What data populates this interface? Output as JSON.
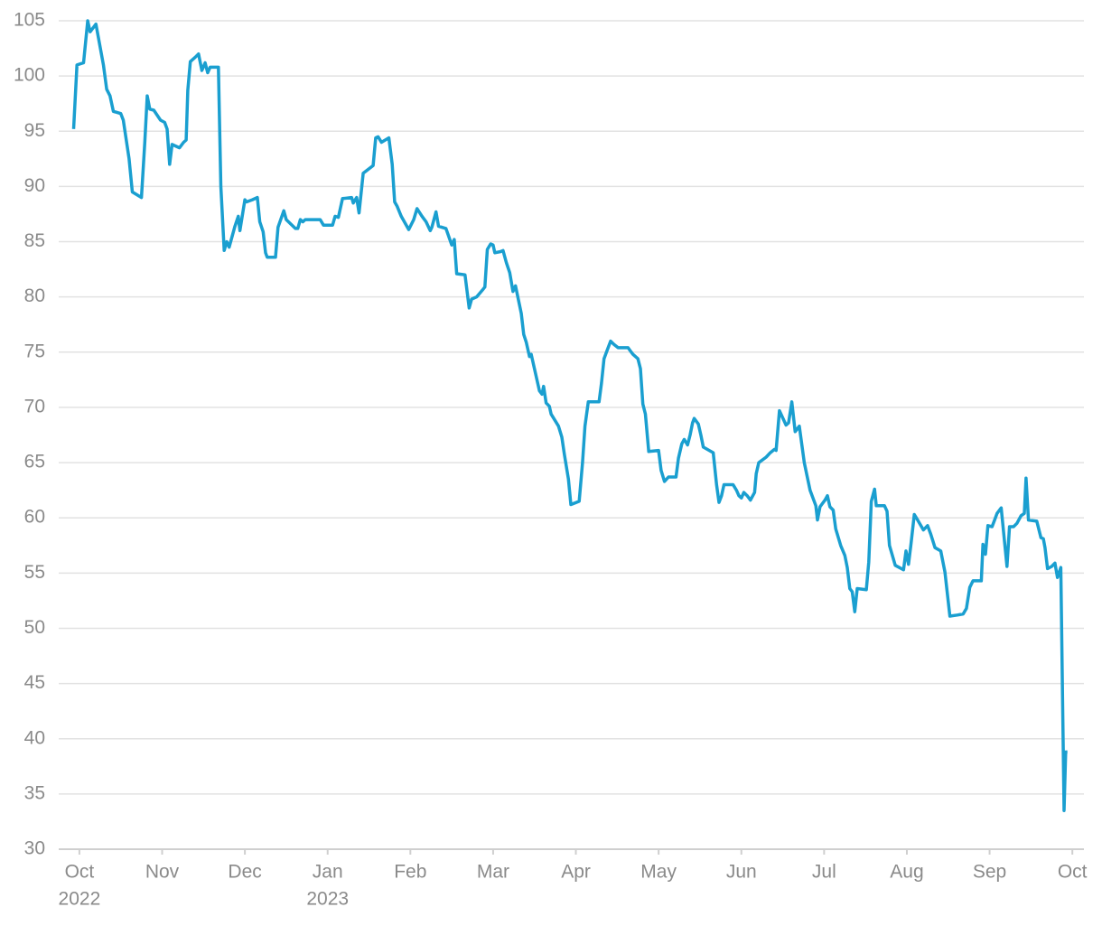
{
  "chart_data": {
    "type": "line",
    "x": [
      -0.07,
      -0.03,
      0.05,
      0.1,
      0.13,
      0.2,
      0.29,
      0.33,
      0.37,
      0.41,
      0.5,
      0.53,
      0.6,
      0.64,
      0.75,
      0.79,
      0.82,
      0.85,
      0.9,
      0.98,
      1.03,
      1.06,
      1.09,
      1.12,
      1.21,
      1.26,
      1.29,
      1.31,
      1.34,
      1.4,
      1.44,
      1.48,
      1.52,
      1.55,
      1.58,
      1.68,
      1.71,
      1.75,
      1.78,
      1.81,
      1.88,
      1.92,
      1.94,
      2.0,
      2.02,
      2.09,
      2.15,
      2.18,
      2.22,
      2.25,
      2.27,
      2.37,
      2.4,
      2.47,
      2.5,
      2.61,
      2.64,
      2.67,
      2.7,
      2.73,
      2.91,
      2.95,
      3.06,
      3.09,
      3.13,
      3.18,
      3.29,
      3.31,
      3.35,
      3.38,
      3.43,
      3.55,
      3.58,
      3.61,
      3.65,
      3.74,
      3.78,
      3.81,
      3.84,
      3.89,
      3.98,
      4.04,
      4.08,
      4.14,
      4.19,
      4.24,
      4.26,
      4.31,
      4.34,
      4.43,
      4.5,
      4.53,
      4.56,
      4.66,
      4.71,
      4.74,
      4.8,
      4.88,
      4.9,
      4.93,
      4.97,
      5.0,
      5.02,
      5.09,
      5.12,
      5.16,
      5.2,
      5.24,
      5.27,
      5.34,
      5.37,
      5.4,
      5.44,
      5.46,
      5.56,
      5.59,
      5.61,
      5.64,
      5.68,
      5.7,
      5.79,
      5.83,
      5.86,
      5.91,
      5.94,
      6.04,
      6.08,
      6.11,
      6.15,
      6.28,
      6.31,
      6.34,
      6.38,
      6.42,
      6.46,
      6.51,
      6.63,
      6.66,
      6.69,
      6.75,
      6.78,
      6.81,
      6.84,
      6.88,
      7.0,
      7.03,
      7.07,
      7.12,
      7.21,
      7.24,
      7.28,
      7.31,
      7.35,
      7.38,
      7.41,
      7.43,
      7.48,
      7.51,
      7.54,
      7.66,
      7.7,
      7.73,
      7.76,
      7.79,
      7.9,
      7.94,
      7.97,
      8.0,
      8.03,
      8.07,
      8.11,
      8.16,
      8.18,
      8.21,
      8.3,
      8.35,
      8.4,
      8.42,
      8.46,
      8.54,
      8.57,
      8.61,
      8.65,
      8.7,
      8.76,
      8.83,
      8.9,
      8.92,
      8.95,
      9.01,
      9.04,
      9.07,
      9.11,
      9.14,
      9.2,
      9.25,
      9.28,
      9.31,
      9.34,
      9.37,
      9.4,
      9.51,
      9.54,
      9.57,
      9.61,
      9.63,
      9.73,
      9.76,
      9.79,
      9.86,
      9.96,
      9.99,
      10.02,
      10.05,
      10.09,
      10.13,
      10.2,
      10.25,
      10.29,
      10.34,
      10.41,
      10.46,
      10.52,
      10.61,
      10.68,
      10.72,
      10.76,
      10.8,
      10.9,
      10.92,
      10.95,
      10.98,
      11.03,
      11.06,
      11.09,
      11.14,
      11.21,
      11.24,
      11.29,
      11.33,
      11.38,
      11.42,
      11.44,
      11.47,
      11.57,
      11.62,
      11.65,
      11.67,
      11.7,
      11.75,
      11.79,
      11.82,
      11.86,
      11.9,
      11.92,
      11.94
    ],
    "series": [
      {
        "color": "#1a9fd0",
        "values": [
          95.2,
          101,
          101.2,
          105,
          104,
          104.7,
          101,
          98.8,
          98.2,
          96.8,
          96.6,
          96,
          92.5,
          89.5,
          89,
          94,
          98.2,
          97,
          96.9,
          96,
          95.8,
          95.2,
          92,
          93.8,
          93.5,
          94,
          94.2,
          98.7,
          101.3,
          101.7,
          102,
          100.5,
          101.2,
          100.3,
          100.8,
          100.8,
          90,
          84.2,
          85,
          84.5,
          86.4,
          87.3,
          86,
          88.8,
          88.6,
          88.8,
          89,
          86.8,
          85.9,
          84,
          83.6,
          83.6,
          86.3,
          87.8,
          87,
          86.2,
          86.2,
          87,
          86.8,
          87,
          87,
          86.5,
          86.5,
          87.3,
          87.2,
          88.9,
          89,
          88.5,
          89,
          87.6,
          91.2,
          91.9,
          94.4,
          94.5,
          94,
          94.4,
          92,
          88.6,
          88.2,
          87.3,
          86.1,
          87,
          88,
          87.3,
          86.8,
          86,
          86.3,
          87.7,
          86.4,
          86.2,
          84.7,
          85.2,
          82.1,
          82,
          79,
          79.8,
          80,
          80.7,
          80.9,
          84.3,
          84.8,
          84.7,
          84,
          84.1,
          84.2,
          83.1,
          82.2,
          80.5,
          81,
          78.5,
          76.6,
          75.9,
          74.6,
          74.8,
          71.5,
          71.2,
          71.9,
          70.4,
          70.1,
          69.4,
          68.3,
          67.3,
          65.8,
          63.5,
          61.2,
          61.5,
          65,
          68.3,
          70.5,
          70.5,
          72.2,
          74.4,
          75.2,
          76,
          75.7,
          75.4,
          75.4,
          75.1,
          74.8,
          74.4,
          73.5,
          70.3,
          69.4,
          66,
          66.1,
          64.3,
          63.3,
          63.7,
          63.7,
          65.4,
          66.7,
          67.1,
          66.6,
          67.5,
          68.6,
          69,
          68.5,
          67.5,
          66.4,
          65.9,
          63,
          61.4,
          62,
          63,
          63,
          62.5,
          62,
          61.8,
          62.3,
          62,
          61.6,
          62.3,
          64,
          65,
          65.5,
          65.9,
          66.2,
          66.1,
          69.7,
          68.4,
          68.6,
          70.5,
          67.8,
          68.3,
          65,
          62.5,
          61.1,
          59.8,
          61,
          61.6,
          62,
          61,
          60.7,
          59,
          57.5,
          56.6,
          55.5,
          53.6,
          53.3,
          51.5,
          53.6,
          53.5,
          56,
          61.5,
          62.6,
          61.1,
          61.1,
          60.6,
          57.5,
          55.7,
          55.3,
          57,
          55.8,
          57.6,
          60.3,
          59.8,
          58.9,
          59.3,
          58.5,
          57.3,
          57,
          55.1,
          51.1,
          51.2,
          51.3,
          51.8,
          53.7,
          54.3,
          54.3,
          57.6,
          56.7,
          59.3,
          59.2,
          59.8,
          60.4,
          60.9,
          55.6,
          59.2,
          59.2,
          59.5,
          60.2,
          60.4,
          63.6,
          59.8,
          59.7,
          58.2,
          58.1,
          57.3,
          55.4,
          55.6,
          55.9,
          54.6,
          55.5,
          33.5,
          38.8,
          38.8
        ]
      }
    ],
    "xlim": [
      -0.25,
      12.14
    ],
    "xticks": [
      {
        "value": 0,
        "label": "Oct"
      },
      {
        "value": 1,
        "label": "Nov"
      },
      {
        "value": 2,
        "label": "Dec"
      },
      {
        "value": 3,
        "label": "Jan"
      },
      {
        "value": 4,
        "label": "Feb"
      },
      {
        "value": 5,
        "label": "Mar"
      },
      {
        "value": 6,
        "label": "Apr"
      },
      {
        "value": 7,
        "label": "May"
      },
      {
        "value": 8,
        "label": "Jun"
      },
      {
        "value": 9,
        "label": "Jul"
      },
      {
        "value": 10,
        "label": "Aug"
      },
      {
        "value": 11,
        "label": "Sep"
      },
      {
        "value": 12,
        "label": "Oct"
      }
    ],
    "xtick_years": [
      {
        "value": 0,
        "label": "2022"
      },
      {
        "value": 3,
        "label": "2023"
      }
    ],
    "ylim": [
      30,
      105
    ],
    "yticks": [
      30,
      35,
      40,
      45,
      50,
      55,
      60,
      65,
      70,
      75,
      80,
      85,
      90,
      95,
      100,
      105
    ],
    "grid": true
  }
}
